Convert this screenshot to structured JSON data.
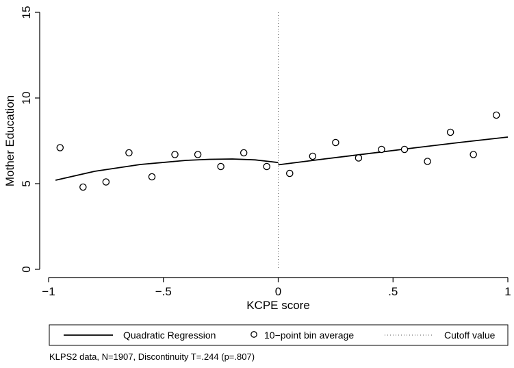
{
  "chart_data": {
    "type": "scatter",
    "xlabel": "KCPE score",
    "ylabel": "Mother Education",
    "xlim": [
      -1,
      1
    ],
    "ylim": [
      0,
      15
    ],
    "x_ticks": [
      -1,
      -0.5,
      0,
      0.5,
      1
    ],
    "x_tick_labels": [
      "−1",
      "−.5",
      "0",
      ".5",
      "1"
    ],
    "y_ticks": [
      0,
      5,
      10,
      15
    ],
    "y_tick_labels": [
      "0",
      "5",
      "10",
      "15"
    ],
    "grid": false,
    "legend_position": "bottom",
    "cutoff": 0,
    "series": [
      {
        "name": "10−point bin average",
        "kind": "scatter",
        "marker": "hollow-circle",
        "x": [
          -0.95,
          -0.85,
          -0.75,
          -0.65,
          -0.55,
          -0.45,
          -0.35,
          -0.25,
          -0.15,
          -0.05,
          0.05,
          0.15,
          0.25,
          0.35,
          0.45,
          0.55,
          0.65,
          0.75,
          0.85,
          0.95
        ],
        "y": [
          7.1,
          4.8,
          5.1,
          6.8,
          5.4,
          6.7,
          6.7,
          6.0,
          6.8,
          6.0,
          5.6,
          6.6,
          7.4,
          6.5,
          7.0,
          7.0,
          6.3,
          8.0,
          6.7,
          9.0
        ]
      },
      {
        "name": "Quadratic Regression",
        "kind": "line",
        "segments": [
          {
            "x": [
              -0.97,
              -0.8,
              -0.6,
              -0.4,
              -0.3,
              -0.2,
              -0.1,
              0.0
            ],
            "y": [
              5.2,
              5.72,
              6.12,
              6.36,
              6.42,
              6.44,
              6.39,
              6.23
            ]
          },
          {
            "x": [
              0.0,
              0.2,
              0.4,
              0.6,
              0.8,
              1.0
            ],
            "y": [
              6.1,
              6.44,
              6.77,
              7.1,
              7.42,
              7.72
            ]
          }
        ]
      },
      {
        "name": "Cutoff value",
        "kind": "vline",
        "style": "dotted"
      }
    ],
    "legend": [
      "Quadratic Regression",
      "10−point bin average",
      "Cutoff value"
    ]
  },
  "note": "KLPS2 data, N=1907, Discontinuity T=.244 (p=.807)"
}
